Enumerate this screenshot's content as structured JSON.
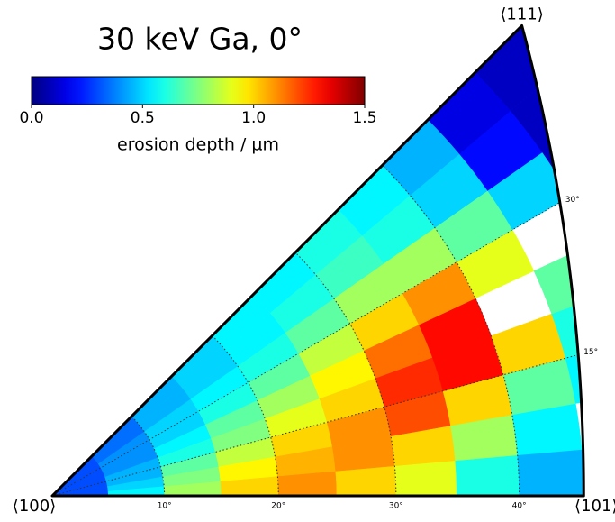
{
  "chart_data": {
    "type": "ipf",
    "title": "30 keV Ga, 0°",
    "colorbar_label": "erosion depth / µm",
    "colormap": "jet",
    "clim": [
      0,
      1.5
    ],
    "cticks": [
      {
        "value": 0,
        "label": "0.0"
      },
      {
        "value": 0.5,
        "label": "0.5"
      },
      {
        "value": 1,
        "label": "1.0"
      },
      {
        "value": 1.5,
        "label": "1.5"
      }
    ],
    "corners": [
      "⟨100⟩",
      "⟨101⟩",
      "⟨111⟩"
    ],
    "tilt_ticks": [
      {
        "value": 10,
        "label": "10°"
      },
      {
        "value": 20,
        "label": "20°"
      },
      {
        "value": 30,
        "label": "30°"
      },
      {
        "value": 40,
        "label": "40°"
      }
    ],
    "azimuth_ticks": [
      {
        "value": 15,
        "label": "15°"
      },
      {
        "value": 30,
        "label": "30°"
      }
    ],
    "azimuth": [
      2.5,
      7.5,
      12.5,
      17.5,
      22.5,
      27.5,
      32.5,
      37.5,
      42.5
    ],
    "tilt": [
      2.5,
      7.5,
      12.5,
      17.5,
      22.5,
      27.5,
      32.5,
      37.5,
      42.5,
      47.5,
      52.5
    ],
    "values": [
      [
        0.3,
        0.3,
        0.3,
        0.3,
        0.3,
        0.3,
        0.3,
        0.3,
        0.3
      ],
      [
        0.55,
        0.5,
        0.45,
        0.45,
        0.4,
        0.4,
        0.4,
        0.35,
        0.35
      ],
      [
        0.8,
        0.75,
        0.7,
        0.6,
        0.55,
        0.5,
        0.5,
        0.45,
        0.45
      ],
      [
        1.0,
        0.95,
        0.85,
        0.75,
        0.7,
        0.6,
        0.55,
        0.5,
        0.5
      ],
      [
        1.1,
        1.05,
        1.0,
        0.9,
        0.8,
        0.7,
        0.6,
        0.55,
        0.55
      ],
      [
        1.0,
        1.1,
        1.1,
        1.0,
        0.95,
        0.85,
        0.7,
        0.6,
        0.55
      ],
      [
        0.9,
        1.0,
        1.2,
        1.25,
        1.15,
        1.0,
        0.8,
        0.65,
        0.6
      ],
      [
        0.6,
        0.8,
        1.0,
        1.3,
        1.3,
        1.1,
        0.8,
        0.6,
        0.55
      ],
      [
        0.45,
        0.55,
        0.7,
        1.0,
        null,
        0.9,
        0.7,
        0.5,
        0.45
      ],
      [
        null,
        null,
        0.55,
        0.6,
        0.7,
        null,
        0.5,
        0.2,
        0.15
      ],
      [
        null,
        null,
        null,
        null,
        null,
        null,
        0.1,
        0.1,
        0.1
      ]
    ]
  }
}
